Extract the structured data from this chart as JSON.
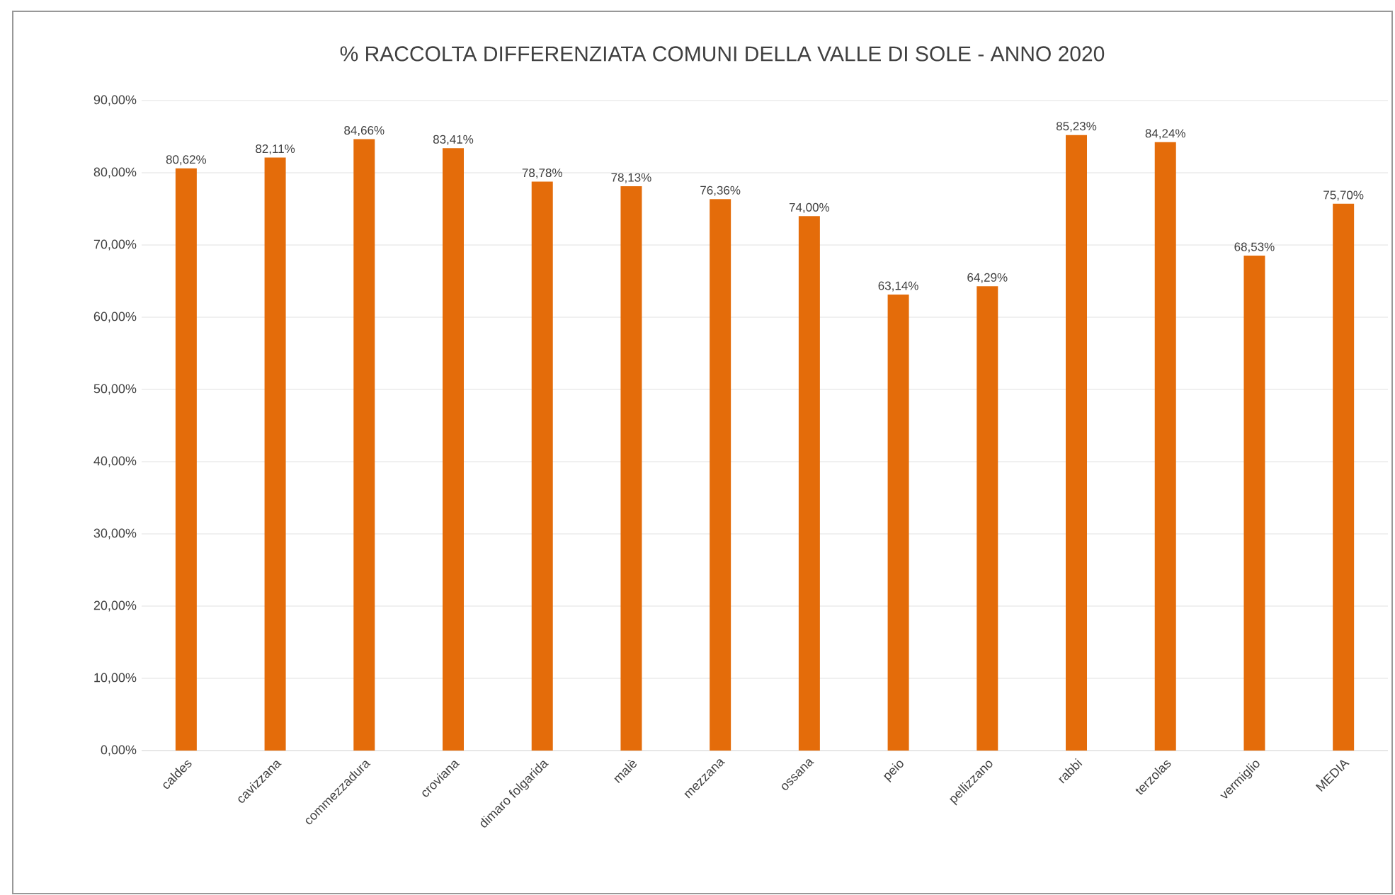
{
  "chart_data": {
    "type": "bar",
    "title": "% RACCOLTA DIFFERENZIATA COMUNI DELLA VALLE DI SOLE - ANNO 2020",
    "categories": [
      "caldes",
      "cavizzana",
      "commezzadura",
      "croviana",
      "dimaro folgarida",
      "malè",
      "mezzana",
      "ossana",
      "peio",
      "pellizzano",
      "rabbi",
      "terzolas",
      "vermiglio",
      "MEDIA"
    ],
    "values": [
      80.62,
      82.11,
      84.66,
      83.41,
      78.78,
      78.13,
      76.36,
      74.0,
      63.14,
      64.29,
      85.23,
      84.24,
      68.53,
      75.7
    ],
    "value_labels": [
      "80,62%",
      "82,11%",
      "84,66%",
      "83,41%",
      "78,78%",
      "78,13%",
      "76,36%",
      "74,00%",
      "63,14%",
      "64,29%",
      "85,23%",
      "84,24%",
      "68,53%",
      "75,70%"
    ],
    "color": "#e46c0a",
    "ylim": [
      0,
      90
    ],
    "yticks": [
      {
        "value": 0,
        "label": "0,00%"
      },
      {
        "value": 10,
        "label": "10,00%"
      },
      {
        "value": 20,
        "label": "20,00%"
      },
      {
        "value": 30,
        "label": "30,00%"
      },
      {
        "value": 40,
        "label": "40,00%"
      },
      {
        "value": 50,
        "label": "50,00%"
      },
      {
        "value": 60,
        "label": "60,00%"
      },
      {
        "value": 70,
        "label": "70,00%"
      },
      {
        "value": 80,
        "label": "80,00%"
      },
      {
        "value": 90,
        "label": "90,00%"
      }
    ],
    "grid": "y"
  }
}
